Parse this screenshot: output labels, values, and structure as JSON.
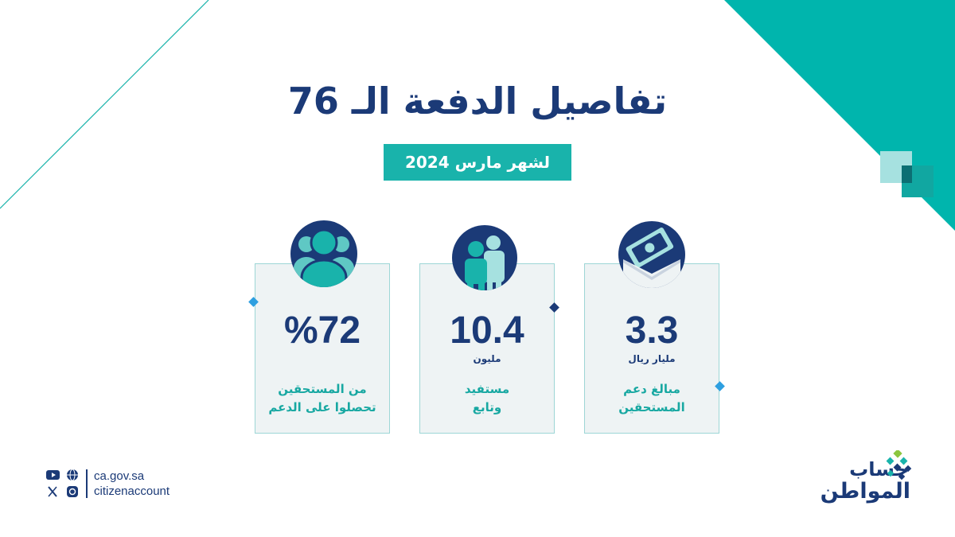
{
  "title": "تفاصيل الدفعة الـ 76",
  "subtitle": "لشهر مارس 2024",
  "cards": [
    {
      "value": "3.3",
      "unit": "مليار ريال",
      "desc_line1": "مبالغ دعم",
      "desc_line2": "المستحقين",
      "icon": "money-envelope-icon"
    },
    {
      "value": "10.4",
      "unit": "مليون",
      "desc_line1": "مستفيد",
      "desc_line2": "وتابع",
      "icon": "beneficiaries-icon"
    },
    {
      "value": "%72",
      "unit": "",
      "desc_line1": "من المستحقين",
      "desc_line2": "تحصلوا على الدعم",
      "icon": "group-users-icon"
    }
  ],
  "footer": {
    "website": "ca.gov.sa",
    "handle": "citizenaccount",
    "icons": [
      "youtube-icon",
      "web-globe-icon",
      "x-icon",
      "instagram-icon"
    ]
  },
  "logo": {
    "line1": "حساب",
    "line2": "المواطن"
  },
  "colors": {
    "navy": "#1b3a77",
    "teal": "#19b3ab",
    "light_teal": "#a6e1e0",
    "card_bg": "#eef3f4"
  }
}
